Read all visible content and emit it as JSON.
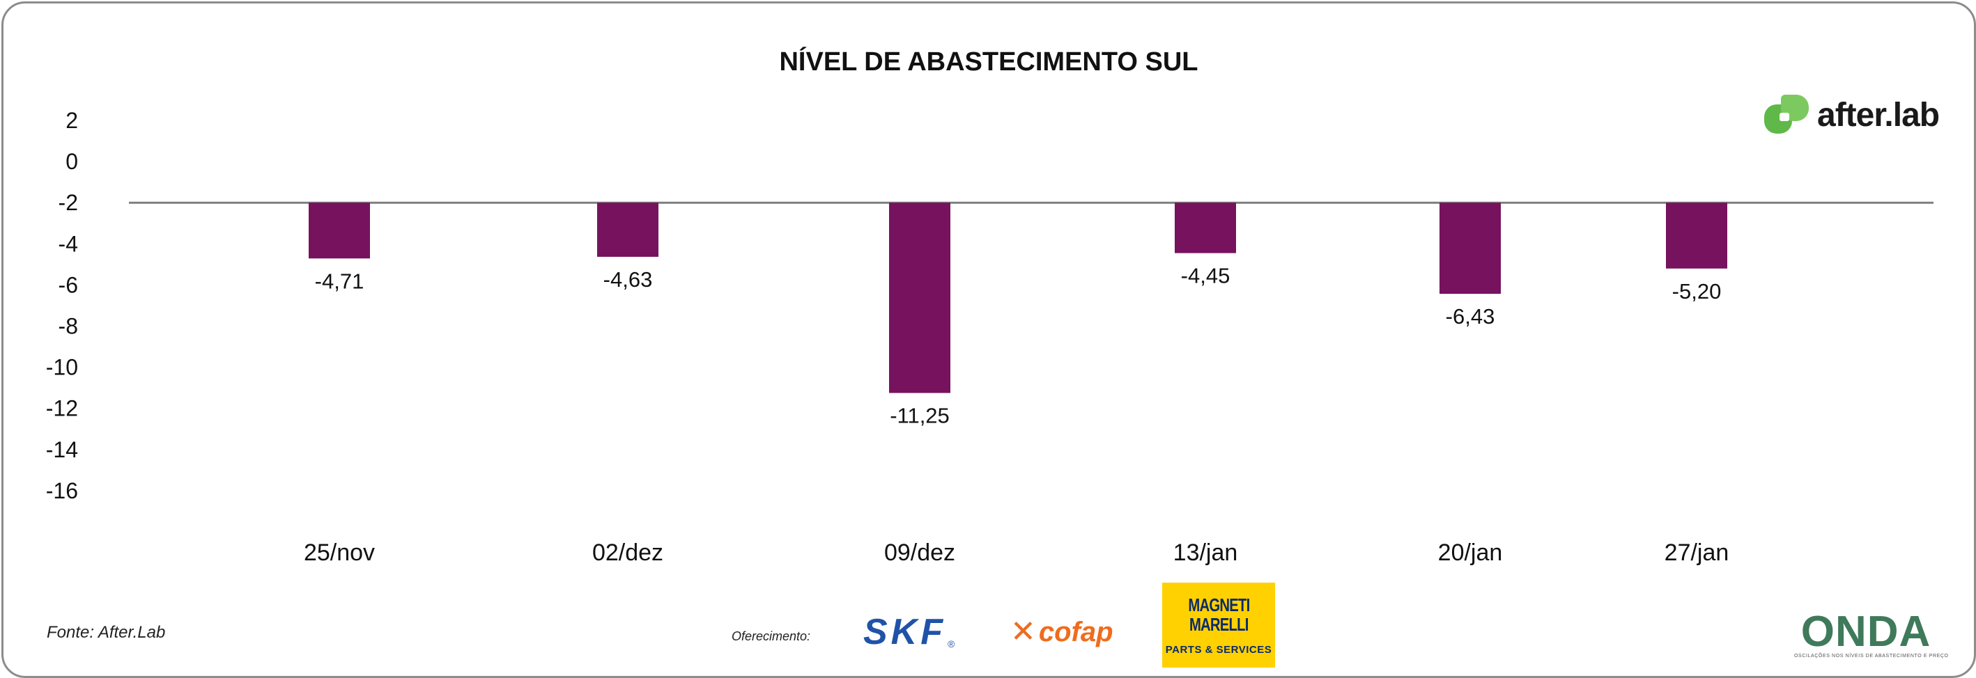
{
  "logos": {
    "afterlab": "after.lab",
    "skf": "SKF",
    "skf_registered": "®",
    "cofap": "cofap",
    "magneti_marelli_line1": "MAGNETI",
    "magneti_marelli_line2": "MARELLI",
    "magneti_marelli_sub": "PARTS & SERVICES",
    "onda": "ONDA",
    "onda_sub": "OSCILAÇÕES NOS NÍVEIS DE ABASTECIMENTO E PREÇO"
  },
  "footer": {
    "source": "Fonte: After.Lab",
    "sponsor_label": "Oferecimento:"
  },
  "colors": {
    "bar": "#76125e",
    "baseline": "#7f7f7f",
    "afterlab_green": "#5fb847",
    "skf_blue": "#1f53a8",
    "cofap_orange": "#ef6c1e",
    "marelli_yellow": "#ffd100",
    "marelli_navy": "#0a2a6b"
  },
  "chart_data": {
    "type": "bar",
    "title": "NÍVEL DE ABASTECIMENTO SUL",
    "categories": [
      "25/nov",
      "02/dez",
      "09/dez",
      "13/jan",
      "20/jan",
      "27/jan"
    ],
    "values": [
      -4.71,
      -4.63,
      -11.25,
      -4.45,
      -6.43,
      -5.2
    ],
    "data_labels": [
      "-4,71",
      "-4,63",
      "-11,25",
      "-4,45",
      "-6,43",
      "-5,20"
    ],
    "baseline": -2,
    "ylim": [
      -16,
      2
    ],
    "yticks": [
      2,
      0,
      -2,
      -4,
      -6,
      -8,
      -10,
      -12,
      -14,
      -16
    ],
    "ytick_labels": [
      "2",
      "0",
      "-2",
      "-4",
      "-6",
      "-8",
      "-10",
      "-12",
      "-14",
      "-16"
    ],
    "grid": false,
    "legend": "none"
  }
}
